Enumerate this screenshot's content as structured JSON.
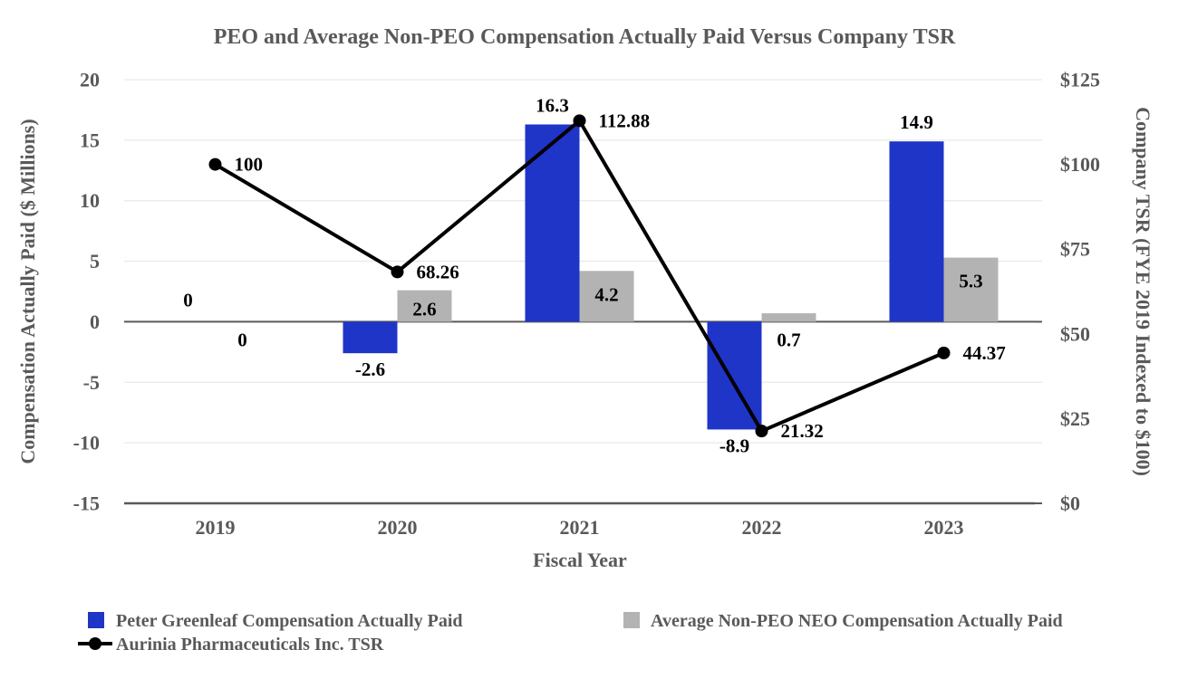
{
  "title": "PEO and Average Non-PEO Compensation Actually Paid Versus Company TSR",
  "colors": {
    "peo_bar": "#1F35C8",
    "non_peo_bar": "#B3B3B3",
    "tsr_line": "#000000",
    "axis_text": "#595959",
    "data_label": "#000000",
    "gridline": "#E9E9E9",
    "axis_line": "#595959"
  },
  "chart_data": {
    "type": "bar+line combo",
    "title": "PEO and Average Non-PEO Compensation Actually Paid Versus Company TSR",
    "grid": "horizontal gridlines on",
    "legend_position": "bottom left, two columns",
    "x_axis": {
      "label": "Fiscal Year",
      "categories": [
        "2019",
        "2020",
        "2021",
        "2022",
        "2023"
      ]
    },
    "left_axis": {
      "label": "Compensation Actually Paid ($ Millions)",
      "min": -15,
      "max": 20,
      "tick_step": 5,
      "ticks": [
        "20",
        "15",
        "10",
        "5",
        "0",
        "-5",
        "-10",
        "-15"
      ]
    },
    "right_axis": {
      "label": "Company TSR (FYE 2019 Indexed to $100)",
      "min": 0,
      "max": 125,
      "tick_step": 25,
      "ticks": [
        "$125",
        "$100",
        "$75",
        "$50",
        "$25",
        "$0"
      ]
    },
    "series": [
      {
        "name": "Peter Greenleaf Compensation Actually Paid",
        "type": "bar",
        "axis": "left",
        "values": [
          0,
          -2.6,
          16.3,
          -8.9,
          14.9
        ],
        "labels": [
          "0",
          "-2.6",
          "16.3",
          "-8.9",
          "14.9"
        ]
      },
      {
        "name": "Average Non-PEO NEO Compensation Actually Paid",
        "type": "bar",
        "axis": "left",
        "values": [
          0,
          2.6,
          4.2,
          0.7,
          5.3
        ],
        "labels": [
          "0",
          "2.6",
          "4.2",
          "0.7",
          "5.3"
        ]
      },
      {
        "name": "Aurinia Pharmaceuticals Inc. TSR",
        "type": "line",
        "axis": "right",
        "values": [
          100,
          68.26,
          112.88,
          21.32,
          44.37
        ],
        "labels": [
          "100",
          "68.26",
          "112.88",
          "21.32",
          "44.37"
        ]
      }
    ]
  }
}
